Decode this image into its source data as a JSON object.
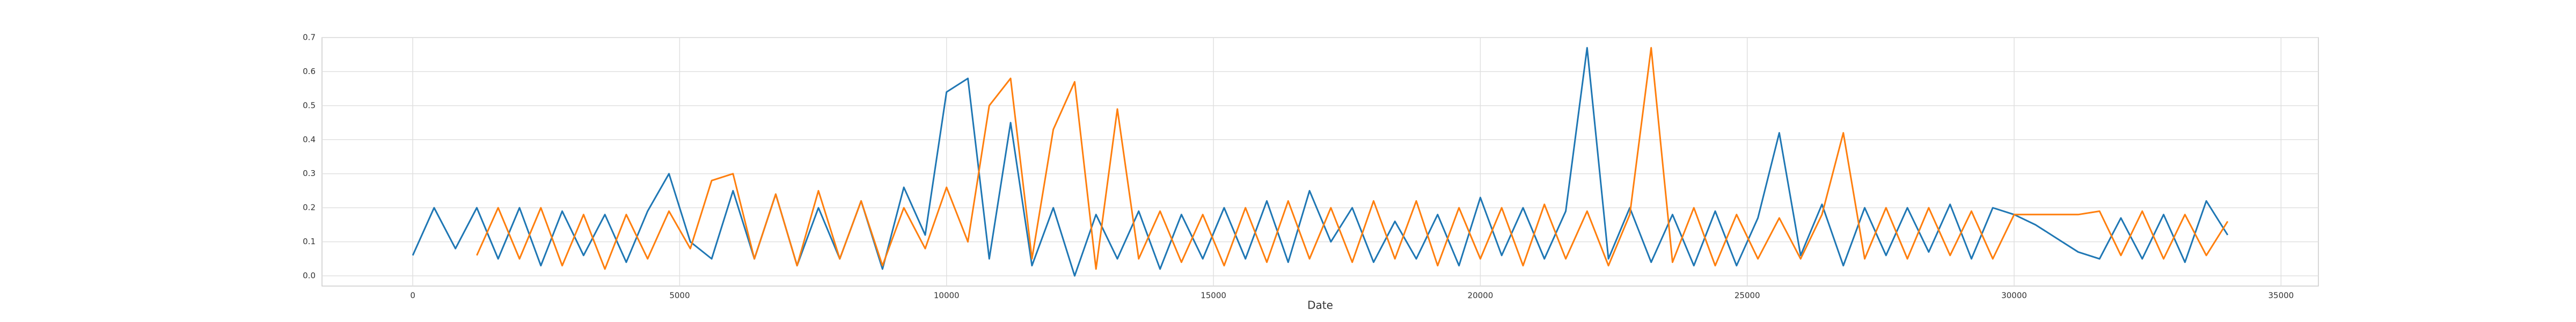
{
  "chart_data": {
    "type": "line",
    "xlabel": "Date",
    "x": [
      0,
      400,
      800,
      1200,
      1600,
      2000,
      2400,
      2800,
      3200,
      3600,
      4000,
      4400,
      4800,
      5200,
      5600,
      6000,
      6400,
      6800,
      7200,
      7600,
      8000,
      8400,
      8800,
      9200,
      9600,
      10000,
      10400,
      10800,
      11200,
      11600,
      12000,
      12400,
      12800,
      13200,
      13600,
      14000,
      14400,
      14800,
      15200,
      15600,
      16000,
      16400,
      16800,
      17200,
      17600,
      18000,
      18400,
      18800,
      19200,
      19600,
      20000,
      20400,
      20800,
      21200,
      21600,
      22000,
      22400,
      22800,
      23200,
      23600,
      24000,
      24400,
      24800,
      25200,
      25600,
      26000,
      26400,
      26800,
      27200,
      27600,
      28000,
      28400,
      28800,
      29200,
      29600,
      30000,
      30400,
      30800,
      31200,
      31600,
      32000,
      32400,
      32800,
      33200,
      33600,
      34000
    ],
    "series": [
      {
        "color": "#1f77b4",
        "values": [
          0.06,
          0.2,
          0.08,
          0.2,
          0.05,
          0.2,
          0.03,
          0.19,
          0.06,
          0.18,
          0.04,
          0.19,
          0.3,
          0.1,
          0.05,
          0.25,
          0.05,
          0.24,
          0.03,
          0.2,
          0.05,
          0.22,
          0.02,
          0.26,
          0.12,
          0.54,
          0.58,
          0.05,
          0.45,
          0.03,
          0.2,
          0.0,
          0.18,
          0.05,
          0.19,
          0.02,
          0.18,
          0.05,
          0.2,
          0.05,
          0.22,
          0.04,
          0.25,
          0.1,
          0.2,
          0.04,
          0.16,
          0.05,
          0.18,
          0.03,
          0.23,
          0.06,
          0.2,
          0.05,
          0.19,
          0.67,
          0.05,
          0.2,
          0.04,
          0.18,
          0.03,
          0.19,
          0.03,
          0.17,
          0.42,
          0.06,
          0.21,
          0.03,
          0.2,
          0.06,
          0.2,
          0.07,
          0.21,
          0.05,
          0.2,
          0.18,
          0.15,
          0.11,
          0.07,
          0.05,
          0.17,
          0.05,
          0.18,
          0.04,
          0.22,
          0.12
        ]
      },
      {
        "color": "#ff7f0e",
        "values": [
          null,
          null,
          null,
          0.06,
          0.2,
          0.05,
          0.2,
          0.03,
          0.18,
          0.02,
          0.18,
          0.05,
          0.19,
          0.08,
          0.28,
          0.3,
          0.05,
          0.24,
          0.03,
          0.25,
          0.05,
          0.22,
          0.03,
          0.2,
          0.08,
          0.26,
          0.1,
          0.5,
          0.58,
          0.05,
          0.43,
          0.57,
          0.02,
          0.49,
          0.05,
          0.19,
          0.04,
          0.18,
          0.03,
          0.2,
          0.04,
          0.22,
          0.05,
          0.2,
          0.04,
          0.22,
          0.05,
          0.22,
          0.03,
          0.2,
          0.05,
          0.2,
          0.03,
          0.21,
          0.05,
          0.19,
          0.03,
          0.18,
          0.67,
          0.04,
          0.2,
          0.03,
          0.18,
          0.05,
          0.17,
          0.05,
          0.18,
          0.42,
          0.05,
          0.2,
          0.05,
          0.2,
          0.06,
          0.19,
          0.05,
          0.18,
          0.18,
          0.18,
          0.18,
          0.19,
          0.06,
          0.19,
          0.05,
          0.18,
          0.06,
          0.16
        ]
      }
    ],
    "xlim": [
      -1700,
      35700
    ],
    "ylim": [
      -0.03,
      0.7
    ],
    "xticks": [
      0,
      5000,
      10000,
      15000,
      20000,
      25000,
      30000,
      35000
    ],
    "yticks": [
      {
        "value": 0,
        "label": "0.0"
      },
      0.1,
      0.2,
      0.3,
      0.4,
      0.5,
      0.6,
      0.7
    ],
    "grid": true
  }
}
